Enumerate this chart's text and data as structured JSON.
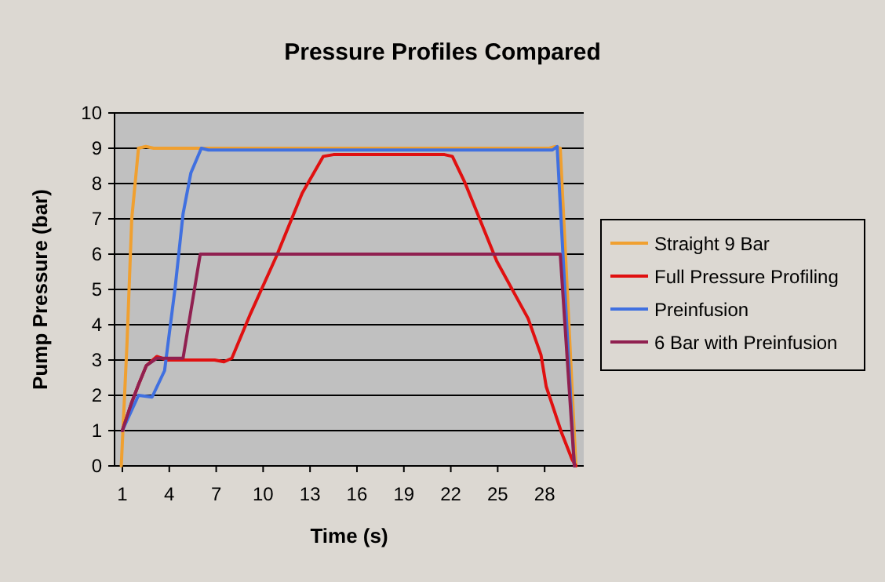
{
  "chart_data": {
    "type": "line",
    "title": "Pressure Profiles Compared",
    "xlabel": "Time (s)",
    "ylabel": "Pump Pressure (bar)",
    "xlim": [
      0.5,
      30.5
    ],
    "xticks": [
      1,
      4,
      7,
      10,
      13,
      16,
      19,
      22,
      25,
      28
    ],
    "ylim": [
      0,
      10
    ],
    "yticks": [
      0,
      1,
      2,
      3,
      4,
      5,
      6,
      7,
      8,
      9,
      10
    ],
    "grid": "y",
    "legend": "right",
    "series": [
      {
        "name": "Straight 9 Bar",
        "color": "#f0a030",
        "x": [
          0.93,
          1.3,
          1.6,
          2.03,
          2.5,
          3,
          28.3,
          28.7,
          29,
          30
        ],
        "values": [
          0,
          3.5,
          7,
          9,
          9.05,
          9,
          9,
          9.05,
          9,
          0
        ]
      },
      {
        "name": "Full Pressure Profiling",
        "color": "#e01010",
        "x": [
          1,
          1.6,
          2.03,
          2.53,
          3.2,
          3.87,
          6.9,
          7.5,
          8,
          9.2,
          10.86,
          12.5,
          13.85,
          14.5,
          21.6,
          22.1,
          22.9,
          24.94,
          26.94,
          27.77,
          28.1,
          29.1,
          29.76,
          30
        ],
        "values": [
          1,
          1.8,
          2.3,
          2.84,
          3.1,
          3,
          3,
          2.95,
          3.05,
          4.32,
          5.95,
          7.73,
          8.77,
          8.82,
          8.82,
          8.77,
          8.03,
          5.8,
          4.18,
          3.14,
          2.25,
          0.92,
          0.18,
          0
        ]
      },
      {
        "name": "Preinfusion",
        "color": "#4070e0",
        "x": [
          1,
          2.03,
          2.9,
          3.7,
          4.38,
          4.88,
          5.38,
          6.05,
          6.5,
          28.5,
          28.8,
          29.9
        ],
        "values": [
          1,
          2,
          1.95,
          2.7,
          5.07,
          7.14,
          8.3,
          9,
          8.95,
          8.95,
          9.05,
          0
        ]
      },
      {
        "name": "6 Bar with Preinfusion",
        "color": "#902050",
        "x": [
          1,
          1.6,
          2.03,
          2.53,
          3.2,
          4.88,
          5.98,
          29,
          29.9
        ],
        "values": [
          1,
          1.8,
          2.3,
          2.84,
          3.05,
          3.05,
          6,
          6,
          0
        ]
      }
    ]
  }
}
